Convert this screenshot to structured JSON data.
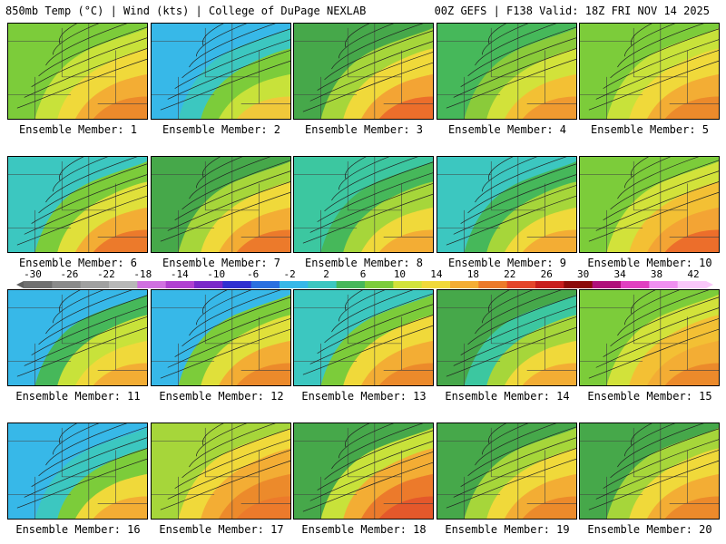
{
  "header": {
    "left_title": "850mb Temp (°C) | Wind (kts) | College of DuPage NEXLAB",
    "right_title": "00Z GEFS | F138 Valid: 18Z FRI NOV 14 2025"
  },
  "panels": [
    {
      "label": "Ensemble Member: 1",
      "palette": [
        "#7ccc3a",
        "#c8e23a",
        "#f0d93a",
        "#f3ad34",
        "#ec8a2b"
      ]
    },
    {
      "label": "Ensemble Member: 2",
      "palette": [
        "#37b8e8",
        "#3cc7c0",
        "#7ccc3a",
        "#c8e23a",
        "#f0c83a"
      ]
    },
    {
      "label": "Ensemble Member: 3",
      "palette": [
        "#46a84a",
        "#a6d63a",
        "#f0d93a",
        "#f3a434",
        "#ec6e2b"
      ]
    },
    {
      "label": "Ensemble Member: 4",
      "palette": [
        "#46b85a",
        "#8acb3a",
        "#d2e23a",
        "#f3c034",
        "#f09a30"
      ]
    },
    {
      "label": "Ensemble Member: 5",
      "palette": [
        "#7ccc3a",
        "#c8e23a",
        "#f0d93a",
        "#f3ad34",
        "#ec8a2b"
      ]
    },
    {
      "label": "Ensemble Member: 6",
      "palette": [
        "#3cc7c0",
        "#7ccc3a",
        "#e0e03a",
        "#f3ad34",
        "#ec7a2b"
      ]
    },
    {
      "label": "Ensemble Member: 7",
      "palette": [
        "#46a84a",
        "#a6d63a",
        "#f0d93a",
        "#f3ad34",
        "#ec7a2b"
      ]
    },
    {
      "label": "Ensemble Member: 8",
      "palette": [
        "#3cc7a0",
        "#46b85a",
        "#a6d63a",
        "#f0d93a",
        "#f3ad34"
      ]
    },
    {
      "label": "Ensemble Member: 9",
      "palette": [
        "#3cc7c0",
        "#46b85a",
        "#a6d63a",
        "#f0d93a",
        "#f3ad34"
      ]
    },
    {
      "label": "Ensemble Member: 10",
      "palette": [
        "#7ccc3a",
        "#d2e23a",
        "#f3c034",
        "#f3a434",
        "#ec6e2b"
      ]
    },
    {
      "label": "Ensemble Member: 11",
      "palette": [
        "#37b8e8",
        "#46b85a",
        "#c8e23a",
        "#f0d93a",
        "#f3ad34"
      ]
    },
    {
      "label": "Ensemble Member: 12",
      "palette": [
        "#37b8e8",
        "#7ccc3a",
        "#e0e03a",
        "#f3ad34",
        "#ec8a2b"
      ]
    },
    {
      "label": "Ensemble Member: 13",
      "palette": [
        "#3cc7c0",
        "#7ccc3a",
        "#f0d93a",
        "#f3ad34",
        "#ec8a2b"
      ]
    },
    {
      "label": "Ensemble Member: 14",
      "palette": [
        "#46a84a",
        "#3cc7a0",
        "#a6d63a",
        "#f0d93a",
        "#f3ad34"
      ]
    },
    {
      "label": "Ensemble Member: 15",
      "palette": [
        "#7ccc3a",
        "#d2e23a",
        "#f3c034",
        "#f3ad34",
        "#ec8a2b"
      ]
    },
    {
      "label": "Ensemble Member: 16",
      "palette": [
        "#37b8e8",
        "#3cc7c0",
        "#7ccc3a",
        "#f0d93a",
        "#f3ad34"
      ]
    },
    {
      "label": "Ensemble Member: 17",
      "palette": [
        "#a6d63a",
        "#f0d93a",
        "#f3ad34",
        "#ec8a2b",
        "#ec7a2b"
      ]
    },
    {
      "label": "Ensemble Member: 18",
      "palette": [
        "#46a84a",
        "#c8e23a",
        "#f3ad34",
        "#ec7a2b",
        "#e4582b"
      ]
    },
    {
      "label": "Ensemble Member: 19",
      "palette": [
        "#46a84a",
        "#a6d63a",
        "#f0d93a",
        "#f3ad34",
        "#ec8a2b"
      ]
    },
    {
      "label": "Ensemble Member: 20",
      "palette": [
        "#46a84a",
        "#a6d63a",
        "#f0d93a",
        "#f3ad34",
        "#ec8a2b"
      ]
    }
  ],
  "colorbar": {
    "ticks": [
      "-30",
      "-26",
      "-22",
      "-18",
      "-14",
      "-10",
      "-6",
      "-2",
      "2",
      "6",
      "10",
      "14",
      "18",
      "22",
      "26",
      "30",
      "34",
      "38",
      "42"
    ],
    "colors": [
      "#707070",
      "#8a8a8a",
      "#a0a0a0",
      "#b8b8b8",
      "#d070e0",
      "#b040d0",
      "#7a28c8",
      "#3030d0",
      "#2a70e0",
      "#37b8e8",
      "#3cc7c0",
      "#46b85a",
      "#7ccc3a",
      "#d2e23a",
      "#f0d93a",
      "#f3ad34",
      "#ec7a2b",
      "#e4452b",
      "#c81e1e",
      "#8c0a0a",
      "#b0107a",
      "#e040c0",
      "#f090f0",
      "#fac8fa"
    ]
  }
}
